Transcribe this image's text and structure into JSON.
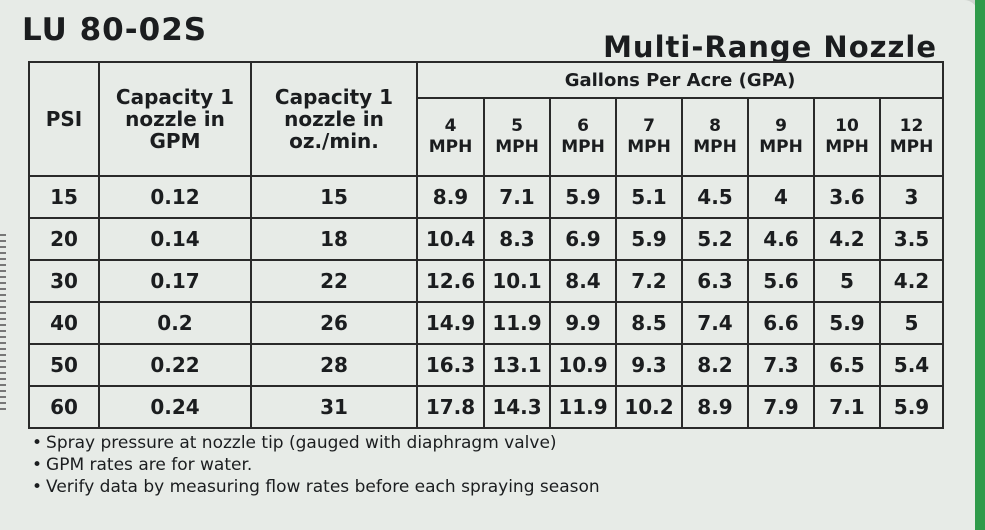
{
  "title": {
    "model": "LU 80-02S",
    "product": "Multi-Range Nozzle"
  },
  "table": {
    "headers": {
      "psi": "PSI",
      "gpm": "Capacity 1 nozzle in GPM",
      "oz": "Capacity 1 nozzle in oz./min.",
      "gpa": "Gallons Per Acre (GPA)"
    },
    "speeds": [
      {
        "value": "4",
        "unit": "MPH"
      },
      {
        "value": "5",
        "unit": "MPH"
      },
      {
        "value": "6",
        "unit": "MPH"
      },
      {
        "value": "7",
        "unit": "MPH"
      },
      {
        "value": "8",
        "unit": "MPH"
      },
      {
        "value": "9",
        "unit": "MPH"
      },
      {
        "value": "10",
        "unit": "MPH"
      },
      {
        "value": "12",
        "unit": "MPH"
      }
    ],
    "rows": [
      {
        "psi": "15",
        "gpm": "0.12",
        "oz": "15",
        "gpa": [
          "8.9",
          "7.1",
          "5.9",
          "5.1",
          "4.5",
          "4",
          "3.6",
          "3"
        ]
      },
      {
        "psi": "20",
        "gpm": "0.14",
        "oz": "18",
        "gpa": [
          "10.4",
          "8.3",
          "6.9",
          "5.9",
          "5.2",
          "4.6",
          "4.2",
          "3.5"
        ]
      },
      {
        "psi": "30",
        "gpm": "0.17",
        "oz": "22",
        "gpa": [
          "12.6",
          "10.1",
          "8.4",
          "7.2",
          "6.3",
          "5.6",
          "5",
          "4.2"
        ]
      },
      {
        "psi": "40",
        "gpm": "0.2",
        "oz": "26",
        "gpa": [
          "14.9",
          "11.9",
          "9.9",
          "8.5",
          "7.4",
          "6.6",
          "5.9",
          "5"
        ]
      },
      {
        "psi": "50",
        "gpm": "0.22",
        "oz": "28",
        "gpa": [
          "16.3",
          "13.1",
          "10.9",
          "9.3",
          "8.2",
          "7.3",
          "6.5",
          "5.4"
        ]
      },
      {
        "psi": "60",
        "gpm": "0.24",
        "oz": "31",
        "gpa": [
          "17.8",
          "14.3",
          "11.9",
          "10.2",
          "8.9",
          "7.9",
          "7.1",
          "5.9"
        ]
      }
    ]
  },
  "notes": [
    "Spray pressure at nozzle tip (gauged with diaphragm valve)",
    "GPM rates are for water.",
    "Verify data by measuring flow rates before each spraying season"
  ],
  "colors": {
    "card": "#e7ebe7",
    "edge": "#2f9a4a",
    "ink": "#1b1d1f"
  }
}
